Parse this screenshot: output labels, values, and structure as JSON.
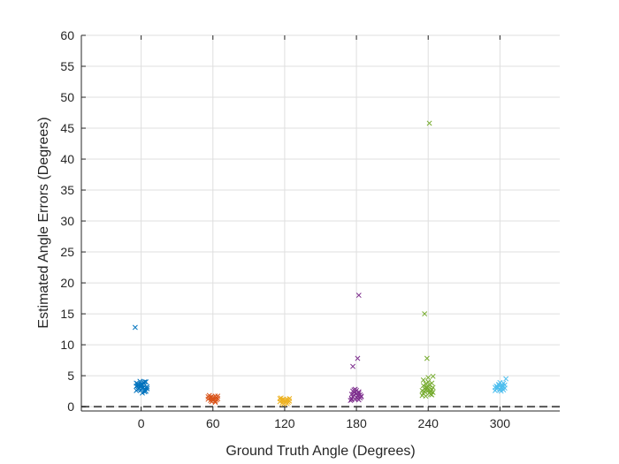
{
  "chart_data": {
    "type": "scatter",
    "title": "",
    "xlabel": "Ground Truth Angle (Degrees)",
    "ylabel": "Estimated Angle Errors (Degrees)",
    "xlim": [
      -50,
      350
    ],
    "ylim": [
      -0.7,
      60
    ],
    "x_ticks": [
      0,
      60,
      120,
      180,
      240,
      300
    ],
    "y_ticks": [
      0,
      5,
      10,
      15,
      20,
      25,
      30,
      35,
      40,
      45,
      50,
      55,
      60
    ],
    "grid": true,
    "marker": "x",
    "reference_line": {
      "y": 0,
      "style": "dashed",
      "color": "#555555"
    },
    "series": [
      {
        "color": "#0072BD",
        "x": [
          -4,
          -3,
          -2,
          -1,
          0,
          1,
          2,
          3,
          4,
          5,
          -4,
          -2,
          0,
          2,
          4,
          -3,
          -1,
          1,
          3,
          5,
          -4,
          -2,
          0,
          2,
          4,
          -3,
          1,
          3,
          0,
          -5
        ],
        "y": [
          2.6,
          2.8,
          3.0,
          3.2,
          3.4,
          3.6,
          3.8,
          4.0,
          3.1,
          2.9,
          3.3,
          3.5,
          2.7,
          3.9,
          2.5,
          3.7,
          4.1,
          3.0,
          2.4,
          3.2,
          3.8,
          2.9,
          3.6,
          3.1,
          4.0,
          3.4,
          2.2,
          2.7,
          3.3,
          12.8
        ]
      },
      {
        "color": "#D95319",
        "x": [
          56,
          57,
          58,
          59,
          60,
          61,
          62,
          63,
          64,
          57,
          59,
          61,
          63,
          58,
          60,
          62,
          64,
          56,
          60,
          62
        ],
        "y": [
          1.2,
          1.4,
          1.0,
          1.6,
          1.3,
          1.5,
          0.9,
          1.1,
          1.7,
          1.8,
          0.8,
          1.2,
          1.4,
          1.5,
          1.0,
          1.7,
          1.3,
          1.6,
          1.1,
          0.7
        ]
      },
      {
        "color": "#EDB120",
        "x": [
          116,
          117,
          118,
          119,
          120,
          121,
          122,
          123,
          124,
          117,
          119,
          121,
          123,
          118,
          120,
          122,
          124,
          116
        ],
        "y": [
          0.8,
          1.0,
          0.6,
          1.2,
          0.9,
          1.1,
          0.5,
          0.7,
          1.3,
          1.4,
          0.4,
          0.8,
          1.0,
          1.1,
          0.6,
          1.2,
          0.9,
          1.3
        ]
      },
      {
        "color": "#7E2F8E",
        "x": [
          175,
          176,
          177,
          178,
          179,
          180,
          181,
          182,
          183,
          184,
          176,
          178,
          180,
          182,
          184,
          177,
          179,
          181,
          183,
          176,
          180,
          182,
          177,
          181,
          178,
          182
        ],
        "y": [
          1.0,
          1.3,
          1.6,
          1.9,
          1.2,
          1.5,
          1.8,
          1.1,
          1.4,
          1.7,
          2.0,
          2.3,
          2.6,
          2.2,
          1.6,
          2.5,
          2.8,
          1.3,
          1.9,
          1.1,
          2.1,
          2.4,
          6.5,
          7.8,
          2.7,
          18.0
        ]
      },
      {
        "color": "#77AC30",
        "x": [
          235,
          236,
          237,
          238,
          239,
          240,
          241,
          242,
          243,
          244,
          236,
          238,
          240,
          242,
          244,
          235,
          237,
          239,
          241,
          243,
          236,
          240,
          244,
          238,
          242,
          237,
          241,
          239,
          243,
          240
        ],
        "y": [
          1.8,
          2.1,
          2.4,
          2.7,
          3.0,
          3.3,
          2.2,
          2.5,
          2.8,
          3.1,
          3.4,
          3.7,
          4.0,
          2.0,
          2.3,
          2.6,
          2.9,
          3.2,
          3.5,
          1.9,
          4.3,
          4.7,
          4.9,
          1.7,
          2.4,
          15.0,
          45.8,
          7.8,
          3.8,
          2.6
        ]
      },
      {
        "color": "#4DBEEE",
        "x": [
          296,
          297,
          298,
          299,
          300,
          301,
          302,
          303,
          304,
          297,
          299,
          301,
          303,
          298,
          300,
          302,
          304,
          296,
          300,
          302,
          305
        ],
        "y": [
          2.6,
          2.9,
          3.2,
          3.5,
          2.8,
          3.1,
          3.4,
          2.7,
          3.0,
          3.3,
          3.6,
          2.5,
          3.8,
          3.0,
          2.7,
          3.2,
          3.5,
          3.1,
          3.9,
          2.9,
          4.5
        ]
      }
    ]
  }
}
